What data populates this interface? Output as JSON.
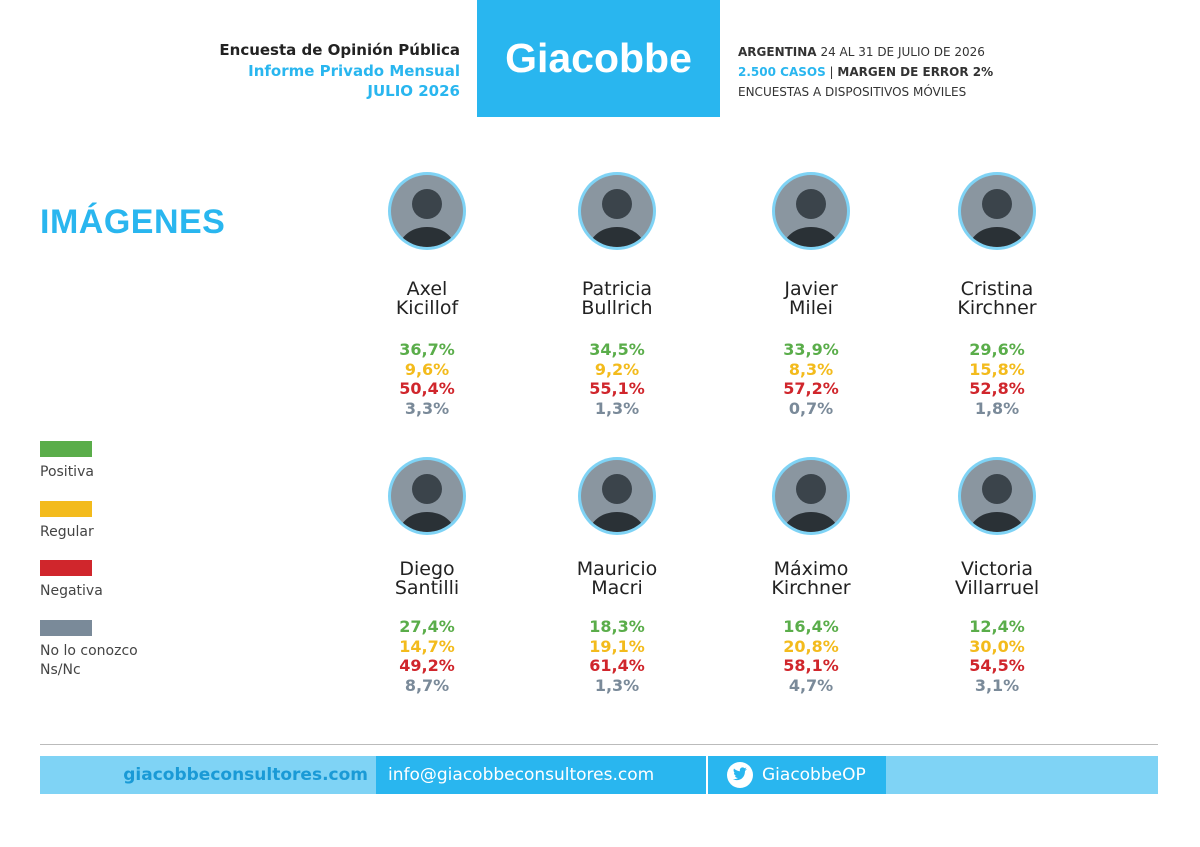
{
  "header": {
    "title": "Encuesta de Opinión Pública",
    "subtitle": "Informe Privado Mensual",
    "date": "JULIO 2026",
    "brand": "Giacobbe",
    "country": "ARGENTINA",
    "period": "24 AL 31 DE JULIO DE 2026",
    "cases": "2.500 CASOS",
    "separator": "|",
    "margin": "MARGEN DE ERROR 2%",
    "method": "ENCUESTAS A DISPOSITIVOS MÓVILES"
  },
  "section_title": "IMÁGENES",
  "legend": [
    {
      "label": [
        "Positiva"
      ],
      "color": "#5aad4a"
    },
    {
      "label": [
        "Regular"
      ],
      "color": "#f3bb1c"
    },
    {
      "label": [
        "Negativa"
      ],
      "color": "#d0262c"
    },
    {
      "label": [
        "No lo conozco",
        "Ns/Nc"
      ],
      "color": "#7a8a99"
    }
  ],
  "candidates": [
    {
      "name": [
        "Axel",
        "Kicillof"
      ],
      "values": [
        "36,7%",
        "9,6%",
        "50,4%",
        "3,3%"
      ]
    },
    {
      "name": [
        "Patricia",
        "Bullrich"
      ],
      "values": [
        "34,5%",
        "9,2%",
        "55,1%",
        "1,3%"
      ]
    },
    {
      "name": [
        "Javier",
        "Milei"
      ],
      "values": [
        "33,9%",
        "8,3%",
        "57,2%",
        "0,7%"
      ]
    },
    {
      "name": [
        "Cristina",
        "Kirchner"
      ],
      "values": [
        "29,6%",
        "15,8%",
        "52,8%",
        "1,8%"
      ]
    },
    {
      "name": [
        "Diego",
        "Santilli"
      ],
      "values": [
        "27,4%",
        "14,7%",
        "49,2%",
        "8,7%"
      ]
    },
    {
      "name": [
        "Mauricio",
        "Macri"
      ],
      "values": [
        "18,3%",
        "19,1%",
        "61,4%",
        "1,3%"
      ]
    },
    {
      "name": [
        "Máximo",
        "Kirchner"
      ],
      "values": [
        "16,4%",
        "20,8%",
        "58,1%",
        "4,7%"
      ]
    },
    {
      "name": [
        "Victoria",
        "Villarruel"
      ],
      "values": [
        "12,4%",
        "30,0%",
        "54,5%",
        "3,1%"
      ]
    }
  ],
  "footer": {
    "website": "giacobbeconsultores.com",
    "email": "info@giacobbeconsultores.com",
    "twitter": "GiacobbeOP"
  }
}
